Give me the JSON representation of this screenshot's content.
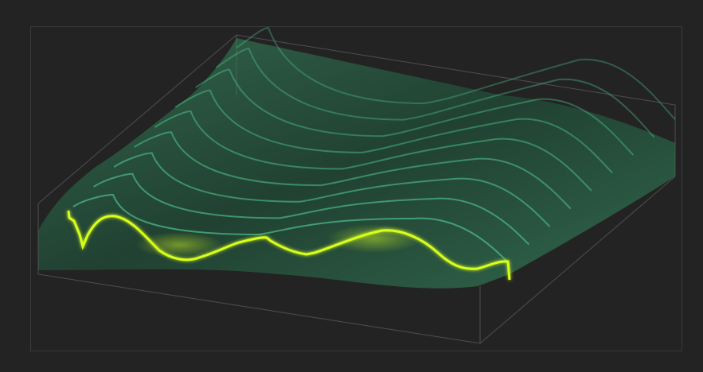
{
  "visualizer": {
    "type": "3d-waterfall-surface",
    "slice_count": 9,
    "colors": {
      "background": "#232323",
      "frame": "#3a3a3a",
      "box_edge": "#5a5a5a",
      "surface_fill": "#2f7a55",
      "slice_line": "#55d69a",
      "active_line": "#d8ff1f"
    },
    "icons": []
  }
}
